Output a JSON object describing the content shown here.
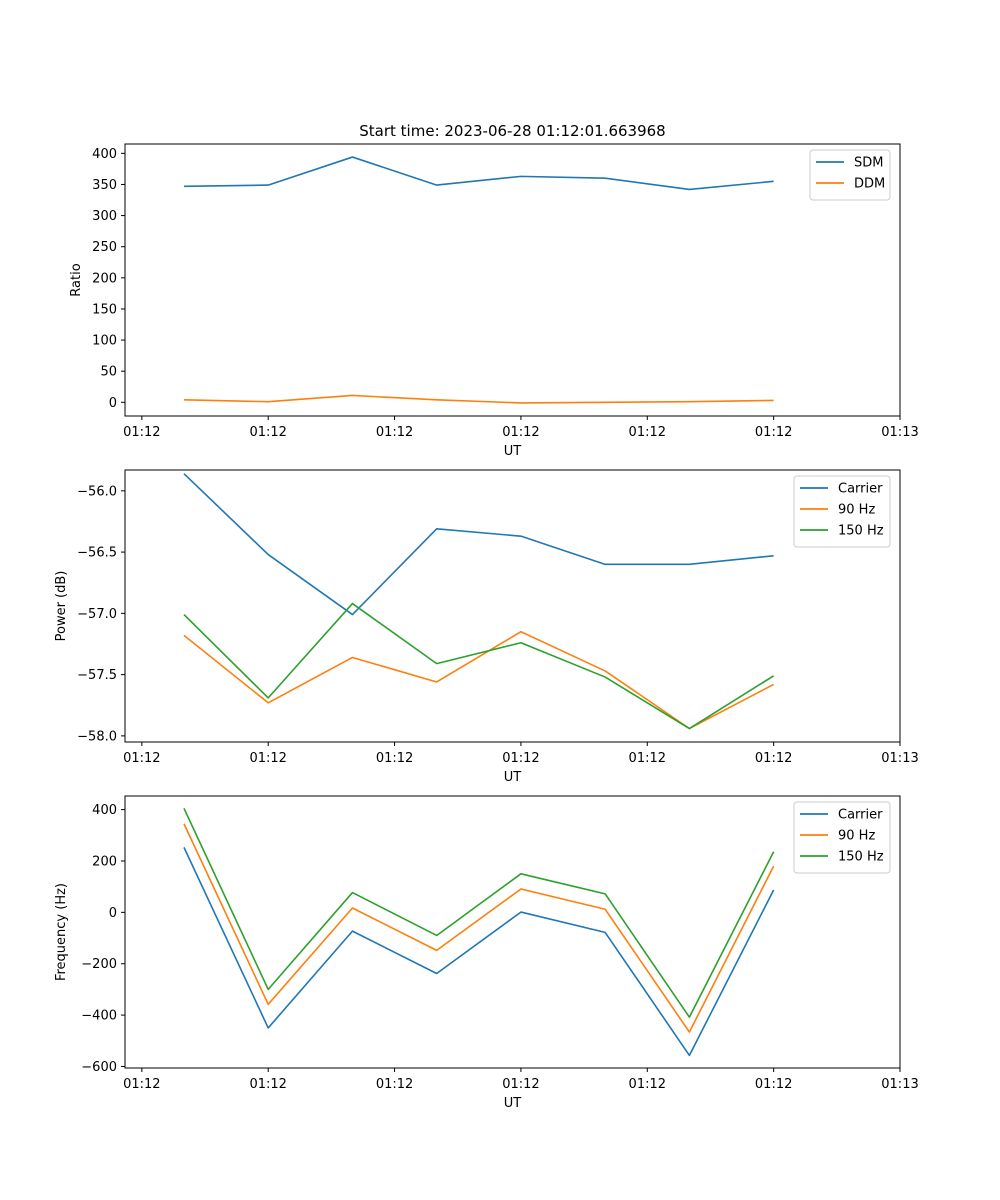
{
  "title": "Start time: 2023-06-28 01:12:01.663968",
  "chart_data": [
    {
      "type": "line",
      "title": "Start time: 2023-06-28 01:12:01.663968",
      "xlabel": "UT",
      "ylabel": "Ratio",
      "x": [
        0.5,
        1.5,
        2.5,
        3.5,
        4.5,
        5.5,
        6.5,
        7.5
      ],
      "xlim": [
        -0.2,
        9.0
      ],
      "xticks": [
        0,
        1.5,
        3,
        4.5,
        6,
        7.5,
        9
      ],
      "xticklabels": [
        "01:12",
        "01:12",
        "01:12",
        "01:12",
        "01:12",
        "01:12",
        "01:13"
      ],
      "ylim": [
        -22,
        415
      ],
      "yticks": [
        0,
        50,
        100,
        150,
        200,
        250,
        300,
        350,
        400
      ],
      "yticklabels": [
        "0",
        "50",
        "100",
        "150",
        "200",
        "250",
        "300",
        "350",
        "400"
      ],
      "legend_position": "upper-right",
      "grid": false,
      "series": [
        {
          "name": "SDM",
          "color": "#1f77b4",
          "values": [
            347,
            349,
            394,
            349,
            363,
            360,
            342,
            355
          ]
        },
        {
          "name": "DDM",
          "color": "#ff7f0e",
          "values": [
            4,
            1,
            11,
            4,
            -1,
            0,
            1,
            3
          ]
        }
      ]
    },
    {
      "type": "line",
      "xlabel": "UT",
      "ylabel": "Power (dB)",
      "x": [
        0.5,
        1.5,
        2.5,
        3.5,
        4.5,
        5.5,
        6.5,
        7.5
      ],
      "xlim": [
        -0.2,
        9.0
      ],
      "xticks": [
        0,
        1.5,
        3,
        4.5,
        6,
        7.5,
        9
      ],
      "xticklabels": [
        "01:12",
        "01:12",
        "01:12",
        "01:12",
        "01:12",
        "01:12",
        "01:13"
      ],
      "ylim": [
        -58.05,
        -55.83
      ],
      "yticks": [
        -58.0,
        -57.5,
        -57.0,
        -56.5,
        -56.0
      ],
      "yticklabels": [
        "−58.0",
        "−57.5",
        "−57.0",
        "−56.5",
        "−56.0"
      ],
      "legend_position": "upper-right",
      "grid": false,
      "series": [
        {
          "name": "Carrier",
          "color": "#1f77b4",
          "values": [
            -55.86,
            -56.52,
            -57.01,
            -56.31,
            -56.37,
            -56.6,
            -56.6,
            -56.53
          ]
        },
        {
          "name": "90 Hz",
          "color": "#ff7f0e",
          "values": [
            -57.18,
            -57.73,
            -57.36,
            -57.56,
            -57.15,
            -57.47,
            -57.94,
            -57.58
          ]
        },
        {
          "name": "150 Hz",
          "color": "#2ca02c",
          "values": [
            -57.01,
            -57.69,
            -56.92,
            -57.41,
            -57.24,
            -57.52,
            -57.94,
            -57.51
          ]
        }
      ]
    },
    {
      "type": "line",
      "xlabel": "UT",
      "ylabel": "Frequency (Hz)",
      "x": [
        0.5,
        1.5,
        2.5,
        3.5,
        4.5,
        5.5,
        6.5,
        7.5
      ],
      "xlim": [
        -0.2,
        9.0
      ],
      "xticks": [
        0,
        1.5,
        3,
        4.5,
        6,
        7.5,
        9
      ],
      "xticklabels": [
        "01:12",
        "01:12",
        "01:12",
        "01:12",
        "01:12",
        "01:12",
        "01:13"
      ],
      "ylim": [
        -606,
        453
      ],
      "yticks": [
        -600,
        -400,
        -200,
        0,
        200,
        400
      ],
      "yticklabels": [
        "−600",
        "−400",
        "−200",
        "0",
        "200",
        "400"
      ],
      "legend_position": "upper-right",
      "grid": false,
      "series": [
        {
          "name": "Carrier",
          "color": "#1f77b4",
          "values": [
            253,
            -450,
            -73,
            -238,
            1,
            -78,
            -557,
            87
          ]
        },
        {
          "name": "90 Hz",
          "color": "#ff7f0e",
          "values": [
            345,
            -358,
            17,
            -148,
            91,
            12,
            -466,
            180
          ]
        },
        {
          "name": "150 Hz",
          "color": "#2ca02c",
          "values": [
            405,
            -300,
            77,
            -90,
            150,
            72,
            -408,
            236
          ]
        }
      ]
    }
  ]
}
